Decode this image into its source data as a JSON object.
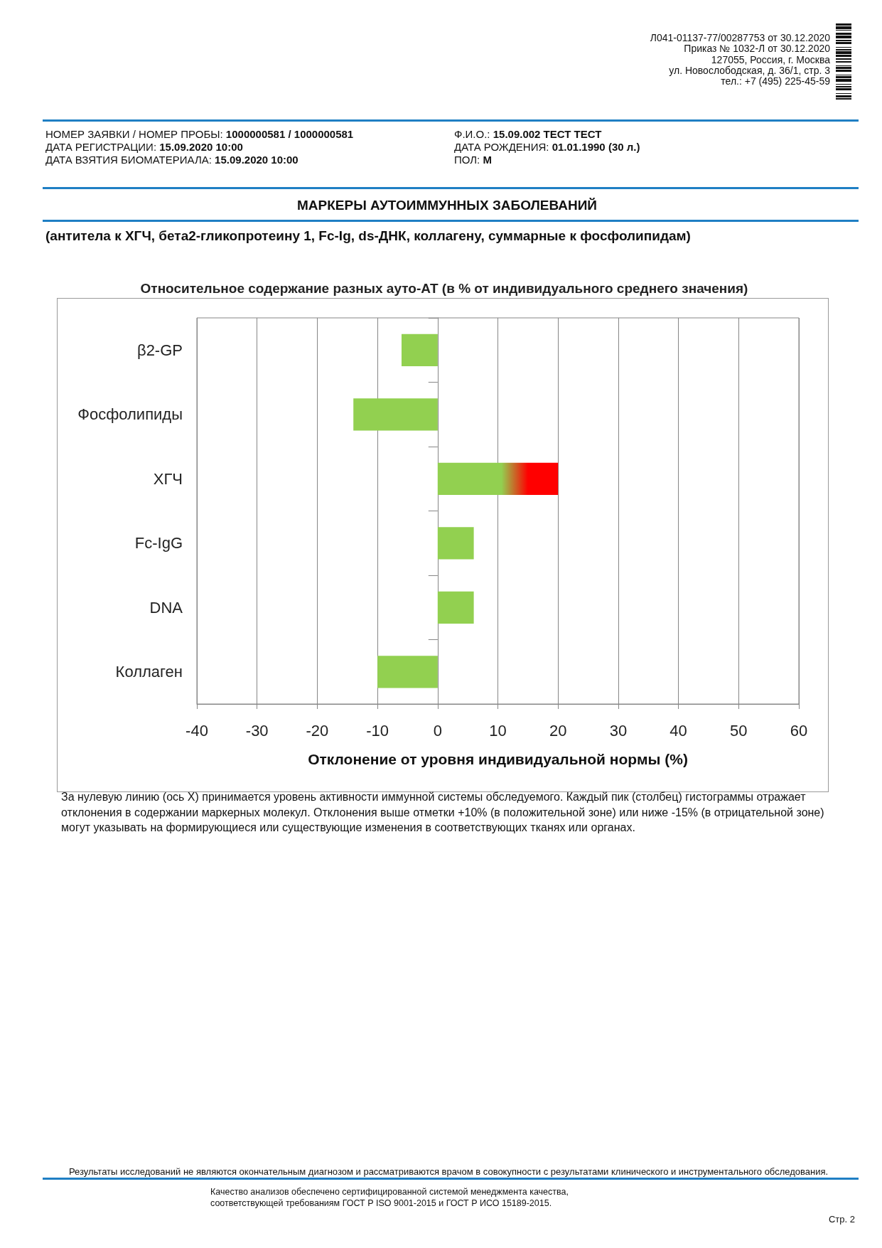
{
  "chart_data": {
    "type": "bar",
    "orientation": "horizontal",
    "title": "Относительное содержание разных ауто-АТ (в % от индивидуального среднего значения)",
    "xlabel": "Отклонение от уровня индивидуальной нормы (%)",
    "categories": [
      "β2-GP",
      "Фосфолипиды",
      "ХГЧ",
      "Fc-IgG",
      "DNA",
      "Коллаген"
    ],
    "values": [
      -6,
      -14,
      20,
      6,
      6,
      -10
    ],
    "color": "#92d050",
    "colors": [
      "#92d050",
      "#92d050",
      "#ff0000",
      "#92d050",
      "#92d050",
      "#92d050"
    ],
    "xlim": [
      -40,
      60
    ],
    "xticks": [
      -40,
      -30,
      -20,
      -10,
      0,
      10,
      20,
      30,
      40,
      50,
      60
    ],
    "grid": "x",
    "annotations": [
      "Л041-01137-77/00287753 от 30.12.2020",
      "Приказ № 1032-Л от 30.12.2020",
      "127055, Россия, г. Москва",
      "ул. Новослободская, д. 36/1, стр. 3",
      "тел.: +7 (495) 225-45-59",
      "НОМЕР ЗАЯВКИ / НОМЕР ПРОБЫ: 1000000581 / 1000000581",
      "ДАТА РЕГИСТРАЦИИ: 15.09.2020 10:00",
      "ДАТА ВЗЯТИЯ БИОМАТЕРИАЛА: 15.09.2020 10:00",
      "Ф.И.О.: 15.09.002 ТЕСТ ТЕСТ",
      "ДАТА РОЖДЕНИЯ: 01.01.1990 (30 л.)",
      "ПОЛ: М",
      "МАРКЕРЫ АУТОИММУННЫХ ЗАБОЛЕВАНИЙ",
      "(антитела к ХГЧ, бета2-гликопротеину 1, Fc-Ig, ds-ДНК, коллагену, суммарные к фосфолипидам)",
      "За нулевую линию (ось X) принимается уровень активности иммунной системы обследуемого. Каждый пик (столбец) гистограммы отражает отклонения в содержании маркерных молекул. Отклонения выше отметки +10% (в положительной зоне) или ниже -15% (в отрицательной зоне) могут указывать на формирующиеся или существующие изменения в соответствующих тканях или органах.",
      "Результаты исследований не являются окончательным диагнозом и рассматриваются врачом в совокупности с результатами клинического и инструментального обследования.",
      "Качество анализов обеспечено сертифицированной системой менеджмента качества,",
      "соответствующей требованиям ГОСТ Р ISO 9001-2015 и ГОСТ Р ИСО 15189-2015.",
      "Стр. 2"
    ]
  }
}
